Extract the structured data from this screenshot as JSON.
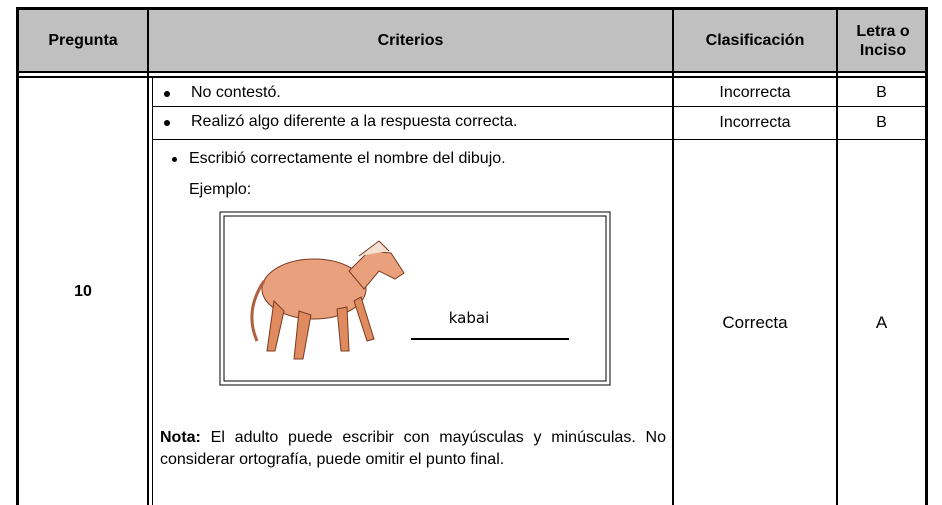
{
  "table": {
    "header": [
      "Pregunta",
      "Criterios",
      "Clasificación",
      "Letra o Inciso"
    ],
    "question": "10",
    "criteria": [
      {
        "text": "No contestó.",
        "classification": "Incorrecta",
        "letter": "B"
      },
      {
        "text": "Realizó algo diferente a la respuesta correcta.",
        "classification": "Incorrecta",
        "letter": "B"
      },
      {
        "text": "Escribió correctamente el nombre del dibujo.",
        "example_label": "Ejemplo:",
        "image_caption": "kabai",
        "note_label": "Nota:",
        "note_text": "El adulto puede escribir con mayúsculas y minúsculas. No considerar ortografía, puede omitir el punto final.",
        "classification": "Correcta",
        "letter": "A"
      }
    ]
  }
}
